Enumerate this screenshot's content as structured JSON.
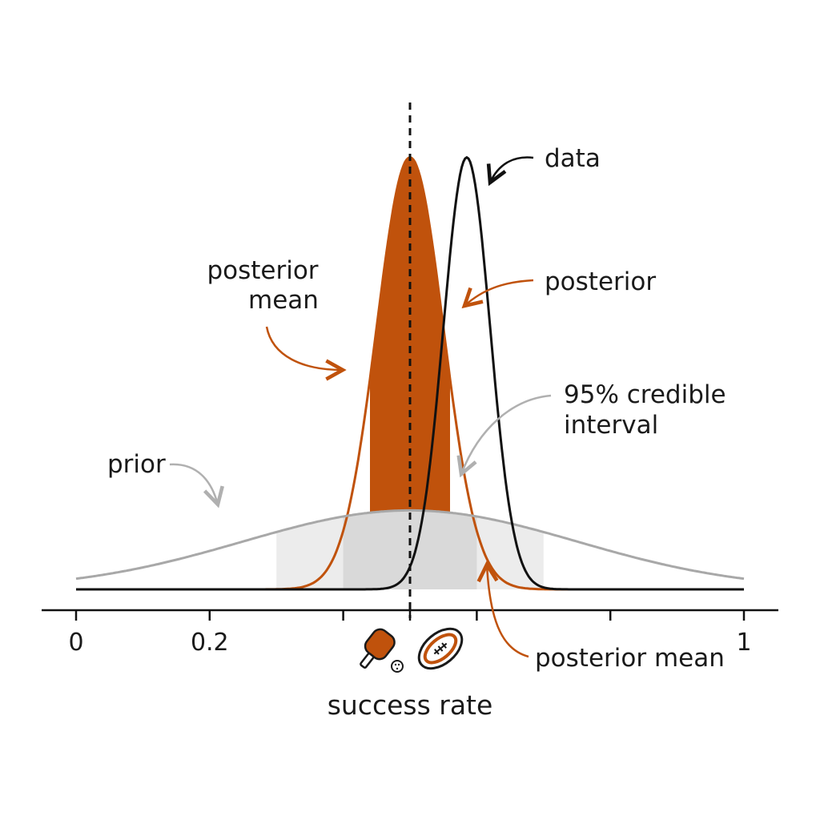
{
  "chart_data": {
    "type": "area",
    "title": "",
    "xlabel": "success rate",
    "ylabel": "",
    "xlim": [
      0,
      1
    ],
    "x_ticks": [
      0,
      0.2,
      0.4,
      0.5,
      0.6,
      0.8,
      1
    ],
    "x_tick_labels": [
      "0",
      "0.2",
      "",
      "",
      "",
      "",
      "1"
    ],
    "grid": false,
    "series": [
      {
        "name": "prior",
        "kind": "normal",
        "mean": 0.5,
        "sd": 0.25,
        "peak": 0.17,
        "color": "#a8a8a8",
        "fill": "none"
      },
      {
        "name": "posterior",
        "kind": "normal",
        "mean": 0.5,
        "sd": 0.05,
        "peak": 0.93,
        "color": "#c0520c",
        "fill": "#c0520c"
      },
      {
        "name": "data",
        "kind": "normal",
        "mean": 0.585,
        "sd": 0.035,
        "peak": 0.93,
        "color": "#111111",
        "fill": "none"
      }
    ],
    "posterior_mean": 0.5,
    "bands": [
      {
        "from": 0.3,
        "to": 0.7,
        "color": "#ececec"
      },
      {
        "from": 0.4,
        "to": 0.6,
        "color": "#d9d9d9"
      }
    ],
    "annotations": [
      {
        "id": "data",
        "lines": [
          "data"
        ],
        "color": "#111111"
      },
      {
        "id": "posterior",
        "lines": [
          "posterior"
        ],
        "color": "#c0520c"
      },
      {
        "id": "posterior-mean-top",
        "lines": [
          "posterior",
          "mean"
        ],
        "color": "#c0520c"
      },
      {
        "id": "credible",
        "lines": [
          "95% credible",
          "interval"
        ],
        "color": "#b0b0b0"
      },
      {
        "id": "prior",
        "lines": [
          "prior"
        ],
        "color": "#b0b0b0"
      },
      {
        "id": "posterior-mean-bottom",
        "lines": [
          "posterior mean"
        ],
        "color": "#c0520c"
      }
    ],
    "icons": [
      "pickleball-paddle-icon",
      "pickleball-icon",
      "rugby-ball-icon"
    ]
  }
}
